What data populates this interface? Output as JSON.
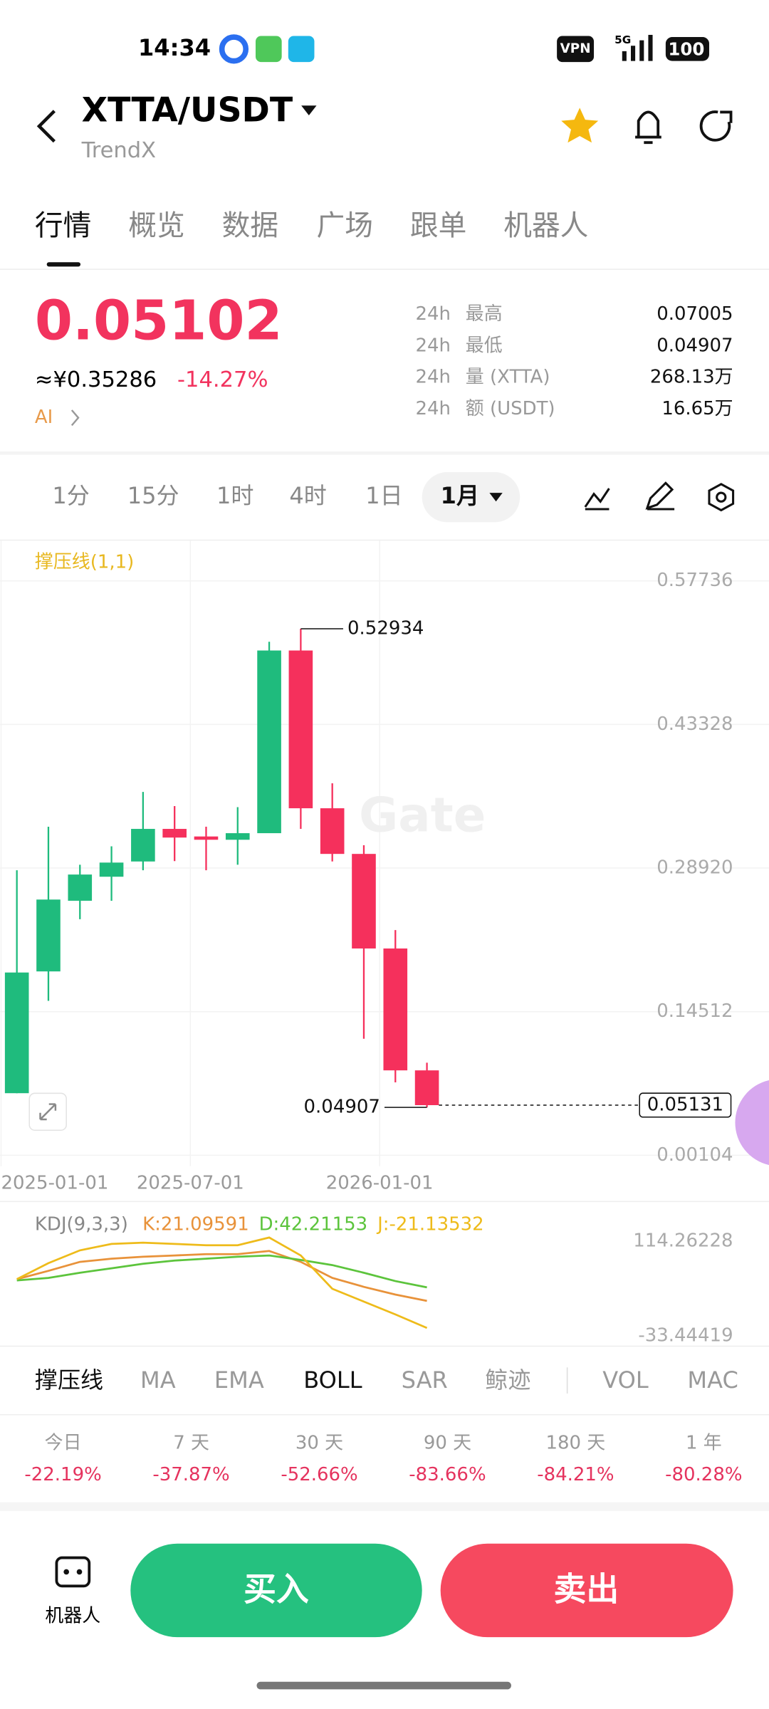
{
  "status_bar": {
    "time": "14:34",
    "vpn": "VPN",
    "network": "5G",
    "battery": "100"
  },
  "header": {
    "pair": "XTTA/USDT",
    "exchange": "TrendX"
  },
  "tabs": {
    "items": [
      "行情",
      "概览",
      "数据",
      "广场",
      "跟单",
      "机器人"
    ],
    "active": 0
  },
  "ticker": {
    "price": "0.05102",
    "cny": "≈¥0.35286",
    "change": "-14.27%",
    "ai": "AI"
  },
  "stats": {
    "rows": [
      [
        "24h",
        "最高",
        "0.07005"
      ],
      [
        "24h",
        "最低",
        "0.04907"
      ],
      [
        "24h",
        "量 (XTTA)",
        "268.13万"
      ],
      [
        "24h",
        "额 (USDT)",
        "16.65万"
      ]
    ]
  },
  "intervals": {
    "items": [
      "1分",
      "15分",
      "1时",
      "4时",
      "1日",
      "1月"
    ],
    "active": 5
  },
  "chart_data": [
    {
      "type": "candlestick",
      "indicator_label": "撑压线(1,1)",
      "watermark": "Gate",
      "x": [
        "2025-01-01",
        "2025-02-01",
        "2025-03-01",
        "2025-04-01",
        "2025-05-01",
        "2025-06-01",
        "2025-07-01",
        "2025-08-01",
        "2025-09-01",
        "2025-10-01",
        "2025-11-01",
        "2025-12-01",
        "2026-01-01",
        "2026-02-01"
      ],
      "open": [
        0.0633,
        0.1855,
        0.2564,
        0.2805,
        0.2958,
        0.3285,
        0.3209,
        0.3176,
        0.3242,
        0.5075,
        0.3492,
        0.3034,
        0.2085,
        0.0862
      ],
      "high": [
        0.287,
        0.3307,
        0.2925,
        0.311,
        0.3656,
        0.3514,
        0.3307,
        0.3503,
        0.5163,
        0.52934,
        0.3743,
        0.3121,
        0.227,
        0.0939
      ],
      "low": [
        0.0633,
        0.156,
        0.2379,
        0.2564,
        0.287,
        0.2962,
        0.287,
        0.2925,
        0.3242,
        0.3285,
        0.2958,
        0.1179,
        0.0742,
        0.04907
      ],
      "close": [
        0.1844,
        0.2576,
        0.2827,
        0.2947,
        0.3285,
        0.3198,
        0.3176,
        0.3242,
        0.5075,
        0.3492,
        0.3034,
        0.2085,
        0.0862,
        0.05131
      ],
      "up_color": "#1fbb7d",
      "down_color": "#f5305c",
      "ylim": [
        -0.0099,
        0.6177
      ],
      "yticks": [
        0.00104,
        0.14512,
        {
          "value": 0.2892,
          "label": "0.28920"
        },
        0.43328,
        0.57736
      ],
      "xticks": [
        "2025-01-01",
        "2025-07-01",
        "2026-01-01"
      ],
      "grid": true
    },
    {
      "type": "line",
      "title": "KDJ(9,3,3)",
      "x": [
        "2025-01-01",
        "2025-02-01",
        "2025-03-01",
        "2025-04-01",
        "2025-05-01",
        "2025-06-01",
        "2025-07-01",
        "2025-08-01",
        "2025-09-01",
        "2025-10-01",
        "2025-11-01",
        "2025-12-01",
        "2026-01-01",
        "2026-02-01"
      ],
      "series": [
        {
          "name": "K",
          "color": "#e8923a",
          "values": [
            55,
            68,
            82,
            87,
            90,
            92,
            94,
            94,
            99,
            82,
            57,
            43,
            31,
            21.09591
          ],
          "value_labels": [
            null,
            null,
            null,
            null,
            null,
            null,
            null,
            null,
            null,
            null,
            null,
            null,
            null,
            "K:21.09591"
          ]
        },
        {
          "name": "D",
          "color": "#5cc43c",
          "values": [
            53,
            57,
            65,
            72,
            79,
            84,
            87,
            90,
            92,
            85,
            77,
            65,
            52,
            42.21153
          ],
          "value_labels": [
            null,
            null,
            null,
            null,
            null,
            null,
            null,
            null,
            null,
            null,
            null,
            null,
            null,
            "D:42.21153"
          ]
        },
        {
          "name": "J",
          "color": "#eebb1a",
          "values": [
            55,
            80,
            100,
            110,
            112,
            110,
            108,
            108,
            120,
            92,
            40,
            20,
            0,
            -21.13532
          ],
          "value_labels": [
            null,
            null,
            null,
            null,
            null,
            null,
            null,
            null,
            null,
            null,
            null,
            null,
            null,
            "J:-21.13532"
          ]
        }
      ],
      "ylim": [
        -33.44419,
        114.26228
      ],
      "yticks": [
        -33.44419,
        114.26228
      ]
    }
  ],
  "indicators": {
    "items": [
      "撑压线",
      "MA",
      "EMA",
      "BOLL",
      "SAR",
      "鲸迹",
      "VOL",
      "MAC"
    ],
    "selected": [
      0,
      3
    ]
  },
  "performance": [
    {
      "period": "今日",
      "change": "-22.19%"
    },
    {
      "period": "7 天",
      "change": "-37.87%"
    },
    {
      "period": "30 天",
      "change": "-52.66%"
    },
    {
      "period": "90 天",
      "change": "-83.66%"
    },
    {
      "period": "180 天",
      "change": "-84.21%"
    },
    {
      "period": "1 年",
      "change": "-80.28%"
    }
  ],
  "bottom": {
    "robot": "机器人",
    "buy": "买入",
    "sell": "卖出"
  }
}
